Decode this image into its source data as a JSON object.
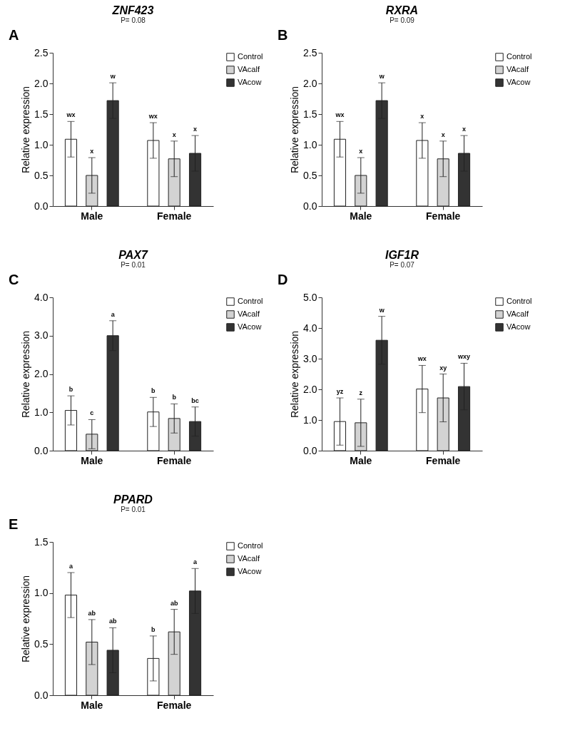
{
  "chart_data": [
    {
      "type": "bar",
      "title": "ZNF423",
      "subtitle": "P= 0.08",
      "ylabel": "Relative expression",
      "categories": [
        "Male",
        "Female"
      ],
      "series": [
        {
          "name": "Control",
          "color": "#ffffff",
          "values": [
            1.09,
            1.07
          ],
          "errors": [
            0.29,
            0.29
          ]
        },
        {
          "name": "VAcalf",
          "color": "#d3d3d3",
          "values": [
            0.5,
            0.77
          ],
          "errors": [
            0.29,
            0.29
          ]
        },
        {
          "name": "VAcow",
          "color": "#333333",
          "values": [
            1.72,
            0.86
          ],
          "errors": [
            0.29,
            0.29
          ]
        }
      ],
      "ylim": [
        0,
        2.5
      ],
      "yticks": [
        {
          "value": 0,
          "label": "0.0"
        },
        0.5,
        {
          "value": 1,
          "label": "1.0"
        },
        1.5,
        {
          "value": 2,
          "label": "2.0"
        },
        2.5
      ],
      "annotations": [
        "A",
        "wx",
        "x",
        "w",
        "wx",
        "x",
        "x"
      ],
      "legend": "top right",
      "grid": false
    },
    {
      "type": "bar",
      "title": "RXRA",
      "subtitle": "P= 0.09",
      "ylabel": "Relative expression",
      "categories": [
        "Male",
        "Female"
      ],
      "series": [
        {
          "name": "Control",
          "color": "#ffffff",
          "values": [
            1.09,
            1.07
          ],
          "errors": [
            0.29,
            0.29
          ]
        },
        {
          "name": "VAcalf",
          "color": "#d3d3d3",
          "values": [
            0.5,
            0.77
          ],
          "errors": [
            0.29,
            0.29
          ]
        },
        {
          "name": "VAcow",
          "color": "#333333",
          "values": [
            1.72,
            0.86
          ],
          "errors": [
            0.29,
            0.29
          ]
        }
      ],
      "ylim": [
        0,
        2.5
      ],
      "yticks": [
        {
          "value": 0,
          "label": "0.0"
        },
        0.5,
        {
          "value": 1,
          "label": "1.0"
        },
        1.5,
        {
          "value": 2,
          "label": "2.0"
        },
        2.5
      ],
      "annotations": [
        "B",
        "wx",
        "x",
        "w",
        "x",
        "x",
        "x"
      ],
      "legend": "top right",
      "grid": false
    },
    {
      "type": "bar",
      "title": "PAX7",
      "subtitle": "P= 0.01",
      "ylabel": "Relative expression",
      "categories": [
        "Male",
        "Female"
      ],
      "series": [
        {
          "name": "Control",
          "color": "#ffffff",
          "values": [
            1.05,
            1.01
          ],
          "errors": [
            0.38,
            0.38
          ]
        },
        {
          "name": "VAcalf",
          "color": "#d3d3d3",
          "values": [
            0.43,
            0.84
          ],
          "errors": [
            0.38,
            0.38
          ]
        },
        {
          "name": "VAcow",
          "color": "#333333",
          "values": [
            3.0,
            0.76
          ],
          "errors": [
            0.39,
            0.38
          ]
        }
      ],
      "ylim": [
        0,
        4
      ],
      "yticks": [
        {
          "value": 0,
          "label": "0.0"
        },
        {
          "value": 1,
          "label": "1.0"
        },
        {
          "value": 2,
          "label": "2.0"
        },
        {
          "value": 3,
          "label": "3.0"
        },
        {
          "value": 4,
          "label": "4.0"
        }
      ],
      "annotations": [
        "C",
        "b",
        "c",
        "a",
        "b",
        "b",
        "bc"
      ],
      "legend": "top right",
      "grid": false
    },
    {
      "type": "bar",
      "title": "IGF1R",
      "subtitle": "P= 0.07",
      "ylabel": "Relative expression",
      "categories": [
        "Male",
        "Female"
      ],
      "series": [
        {
          "name": "Control",
          "color": "#ffffff",
          "values": [
            0.95,
            2.01
          ],
          "errors": [
            0.77,
            0.77
          ]
        },
        {
          "name": "VAcalf",
          "color": "#d3d3d3",
          "values": [
            0.91,
            1.72
          ],
          "errors": [
            0.77,
            0.78
          ]
        },
        {
          "name": "VAcow",
          "color": "#333333",
          "values": [
            3.6,
            2.09
          ],
          "errors": [
            0.78,
            0.76
          ]
        }
      ],
      "ylim": [
        0,
        5
      ],
      "yticks": [
        {
          "value": 0,
          "label": "0.0"
        },
        {
          "value": 1,
          "label": "1.0"
        },
        {
          "value": 2,
          "label": "2.0"
        },
        {
          "value": 3,
          "label": "3.0"
        },
        {
          "value": 4,
          "label": "4.0"
        },
        {
          "value": 5,
          "label": "5.0"
        }
      ],
      "annotations": [
        "D",
        "yz",
        "z",
        "w",
        "wx",
        "xy",
        "wxy"
      ],
      "legend": "top right",
      "grid": false
    },
    {
      "type": "bar",
      "title": "PPARD",
      "subtitle": "P= 0.01",
      "ylabel": "Relative expression",
      "categories": [
        "Male",
        "Female"
      ],
      "series": [
        {
          "name": "Control",
          "color": "#ffffff",
          "values": [
            0.98,
            0.36
          ],
          "errors": [
            0.22,
            0.22
          ]
        },
        {
          "name": "VAcalf",
          "color": "#d3d3d3",
          "values": [
            0.52,
            0.62
          ],
          "errors": [
            0.22,
            0.22
          ]
        },
        {
          "name": "VAcow",
          "color": "#333333",
          "values": [
            0.44,
            1.02
          ],
          "errors": [
            0.22,
            0.22
          ]
        }
      ],
      "ylim": [
        0,
        1.5
      ],
      "yticks": [
        {
          "value": 0,
          "label": "0.0"
        },
        0.5,
        {
          "value": 1,
          "label": "1.0"
        },
        1.5
      ],
      "annotations": [
        "E",
        "a",
        "ab",
        "ab",
        "b",
        "ab",
        "a"
      ],
      "legend": "top right",
      "grid": false
    }
  ]
}
